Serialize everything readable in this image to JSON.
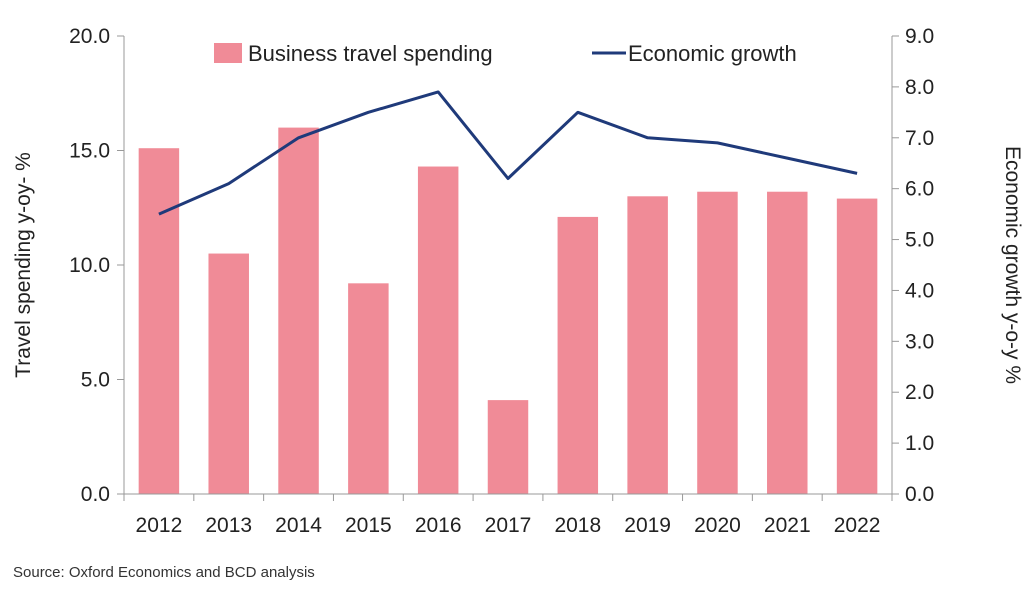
{
  "chart_data": {
    "type": "bar",
    "categories": [
      "2012",
      "2013",
      "2014",
      "2015",
      "2016",
      "2017",
      "2018",
      "2019",
      "2020",
      "2021",
      "2022"
    ],
    "series": [
      {
        "name": "Business travel spending",
        "type": "bar",
        "axis": "left",
        "values": [
          15.1,
          10.5,
          16.0,
          9.2,
          14.3,
          4.1,
          12.1,
          13.0,
          13.2,
          13.2,
          12.9
        ]
      },
      {
        "name": "Economic growth",
        "type": "line",
        "axis": "right",
        "values": [
          5.5,
          6.1,
          7.0,
          7.5,
          7.9,
          6.2,
          7.5,
          7.0,
          6.9,
          6.6,
          6.3
        ]
      }
    ],
    "ylabel": "Travel spending y-oy- %",
    "ylabel_right": "Economic growth y-o-y %",
    "ylim": [
      0,
      20
    ],
    "ylim_right": [
      0,
      9
    ],
    "yticks": [
      "0.0",
      "5.0",
      "10.0",
      "15.0",
      "20.0"
    ],
    "yticks_right": [
      "0.0",
      "1.0",
      "2.0",
      "3.0",
      "4.0",
      "5.0",
      "6.0",
      "7.0",
      "8.0",
      "9.0"
    ],
    "legend_position": "top",
    "grid": false,
    "colors": {
      "bar": "#f08b97",
      "line": "#1f3a7a",
      "axis": "#999999"
    }
  },
  "source": "Source: Oxford Economics and BCD analysis"
}
